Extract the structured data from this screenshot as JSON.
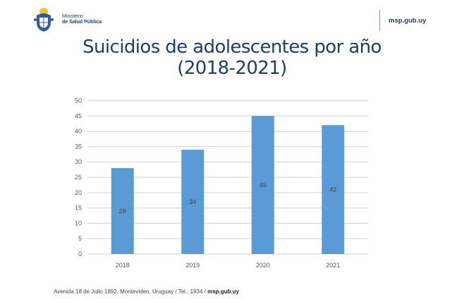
{
  "header": {
    "ministry_line1": "Ministerio",
    "ministry_line2": "de Salud Pública",
    "site": "msp.gub.uy",
    "logo_icon": "uruguay-coat-of-arms-icon"
  },
  "slide": {
    "title_line1": "Suicidios de adolescentes por año",
    "title_line2": "(2018-2021)"
  },
  "footer": {
    "address": "Avenida 18 de Julio 1892, Montevideo, Uruguay / Tel.: 1934 / ",
    "site": "msp.gub.uy"
  },
  "colors": {
    "bar": "#5b9bd5",
    "title": "#1f3d6b",
    "grid": "#d9d9d9"
  },
  "chart_data": {
    "type": "bar",
    "title": "Suicidios de adolescentes por año (2018-2021)",
    "categories": [
      "2018",
      "2019",
      "2020",
      "2021"
    ],
    "values": [
      28,
      34,
      45,
      42
    ],
    "data_labels": [
      "28",
      "34",
      "45",
      "42"
    ],
    "xlabel": "",
    "ylabel": "",
    "ylim": [
      0,
      50
    ],
    "yticks": [
      0,
      5,
      10,
      15,
      20,
      25,
      30,
      35,
      40,
      45,
      50
    ],
    "grid": true,
    "legend": "none"
  }
}
